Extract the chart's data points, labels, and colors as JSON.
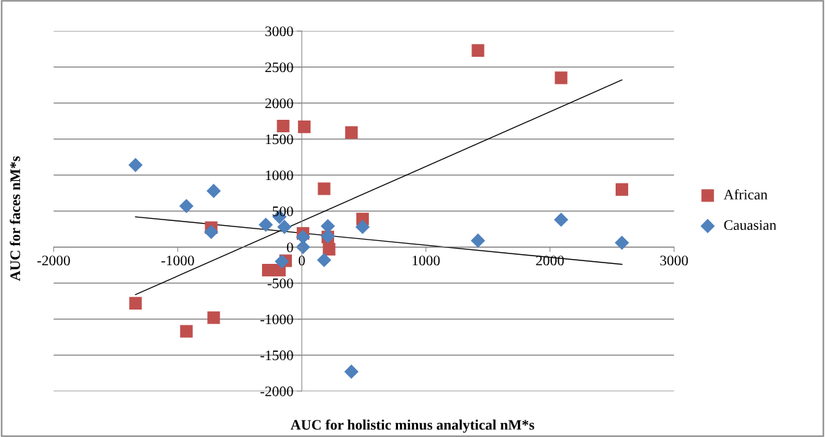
{
  "chart_data": {
    "type": "scatter",
    "xlabel": "AUC for holistic minus analytical nM*s",
    "ylabel": "AUC for faces nM*s",
    "xlim": [
      -2000,
      3000
    ],
    "ylim": [
      -2000,
      3000
    ],
    "xticks": [
      -2000,
      -1000,
      0,
      1000,
      2000,
      3000
    ],
    "yticks": [
      -2000,
      -1500,
      -1000,
      -500,
      0,
      500,
      1000,
      1500,
      2000,
      2500,
      3000
    ],
    "grid": "y",
    "legend": "right",
    "series": [
      {
        "name": "African",
        "color": "#c0504d",
        "marker": "square",
        "x": [
          -1340,
          -930,
          -710,
          -730,
          -150,
          20,
          400,
          180,
          490,
          10,
          210,
          220,
          -130,
          -270,
          -180,
          1420,
          2090,
          2580
        ],
        "values": [
          -780,
          -1170,
          -980,
          270,
          1680,
          1670,
          1590,
          810,
          390,
          190,
          140,
          -30,
          -190,
          -320,
          -320,
          2730,
          2350,
          800
        ]
      },
      {
        "name": "Cauasian",
        "color": "#4f81bd",
        "marker": "diamond",
        "x": [
          -1340,
          -930,
          -710,
          -730,
          -290,
          -180,
          -140,
          -160,
          10,
          10,
          210,
          210,
          180,
          490,
          400,
          1420,
          2090,
          2580
        ],
        "values": [
          1140,
          570,
          780,
          210,
          310,
          420,
          280,
          -200,
          140,
          0,
          290,
          150,
          -180,
          280,
          -1730,
          90,
          380,
          60
        ]
      },
      {
        "type": "line",
        "color": "#000000",
        "marker": "none",
        "x": [
          -1340,
          2580
        ],
        "values": [
          -660,
          2320
        ]
      },
      {
        "type": "line",
        "color": "#000000",
        "marker": "none",
        "x": [
          -1340,
          2580
        ],
        "values": [
          420,
          -240
        ]
      }
    ]
  }
}
